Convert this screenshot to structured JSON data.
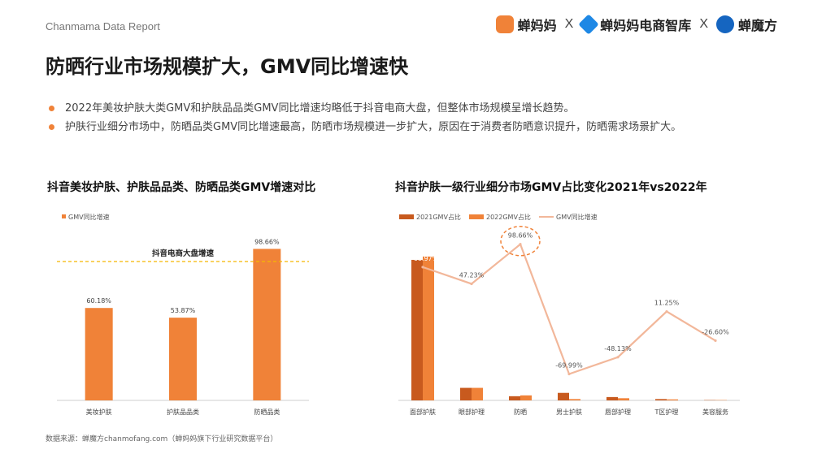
{
  "header": {
    "brand_text": "Chanmama Data Report",
    "logos": [
      "蝉妈妈",
      "蝉妈妈电商智库",
      "蝉魔方"
    ],
    "separator": "X"
  },
  "title": "防晒行业市场规模扩大，GMV同比增速快",
  "bullets": [
    "2022年美妆护肤大类GMV和护肤品品类GMV同比增速均略低于抖音电商大盘，但整体市场规模呈增长趋势。",
    "护肤行业细分市场中，防晒品类GMV同比增速最高，防晒市场规模进一步扩大，原因在于消费者防晒意识提升，防晒需求场景扩大。"
  ],
  "colors": {
    "accent": "#f08238",
    "dark_orange": "#c85a1e",
    "line": "#f2b79a",
    "text": "#444444"
  },
  "chart_data": [
    {
      "type": "bar",
      "title": "抖音美妆护肤、护肤品品类、防晒品类GMV增速对比",
      "legend": [
        "GMV同比增速"
      ],
      "categories": [
        "美妆护肤",
        "护肤品品类",
        "防晒品类"
      ],
      "values": [
        60.18,
        53.87,
        98.66
      ],
      "value_labels": [
        "60.18%",
        "53.87%",
        "98.66%"
      ],
      "reference_line": {
        "label": "抖音电商大盘增速"
      },
      "ylim": [
        0,
        110
      ]
    },
    {
      "type": "bar",
      "title": "抖音护肤一级行业细分市场GMV占比变化2021年vs2022年",
      "legend": [
        "2021GMV占比",
        "2022GMV占比",
        "GMV同比增速"
      ],
      "categories": [
        "面部护肤",
        "眼部护理",
        "防晒",
        "男士护肤",
        "唇部护理",
        "T区护理",
        "美容服务"
      ],
      "series": [
        {
          "name": "2021GMV占比",
          "values": [
            84,
            7.5,
            2.5,
            4.5,
            2,
            0.8,
            0.2
          ]
        },
        {
          "name": "2022GMV占比",
          "values": [
            86,
            7.5,
            3,
            0.8,
            1.3,
            0.6,
            0.2
          ]
        }
      ],
      "growth": [
        68.97,
        47.23,
        98.66,
        -69.99,
        -48.13,
        11.25,
        -26.6
      ],
      "growth_labels": [
        "68.97%",
        "47.23%",
        "98.66%",
        "-69.99%",
        "-48.13%",
        "11.25%",
        "-26.60%"
      ],
      "ylim": [
        0,
        100
      ]
    }
  ],
  "footer": "数据来源：蝉魔方chanmofang.com（蝉妈妈旗下行业研究数据平台）"
}
